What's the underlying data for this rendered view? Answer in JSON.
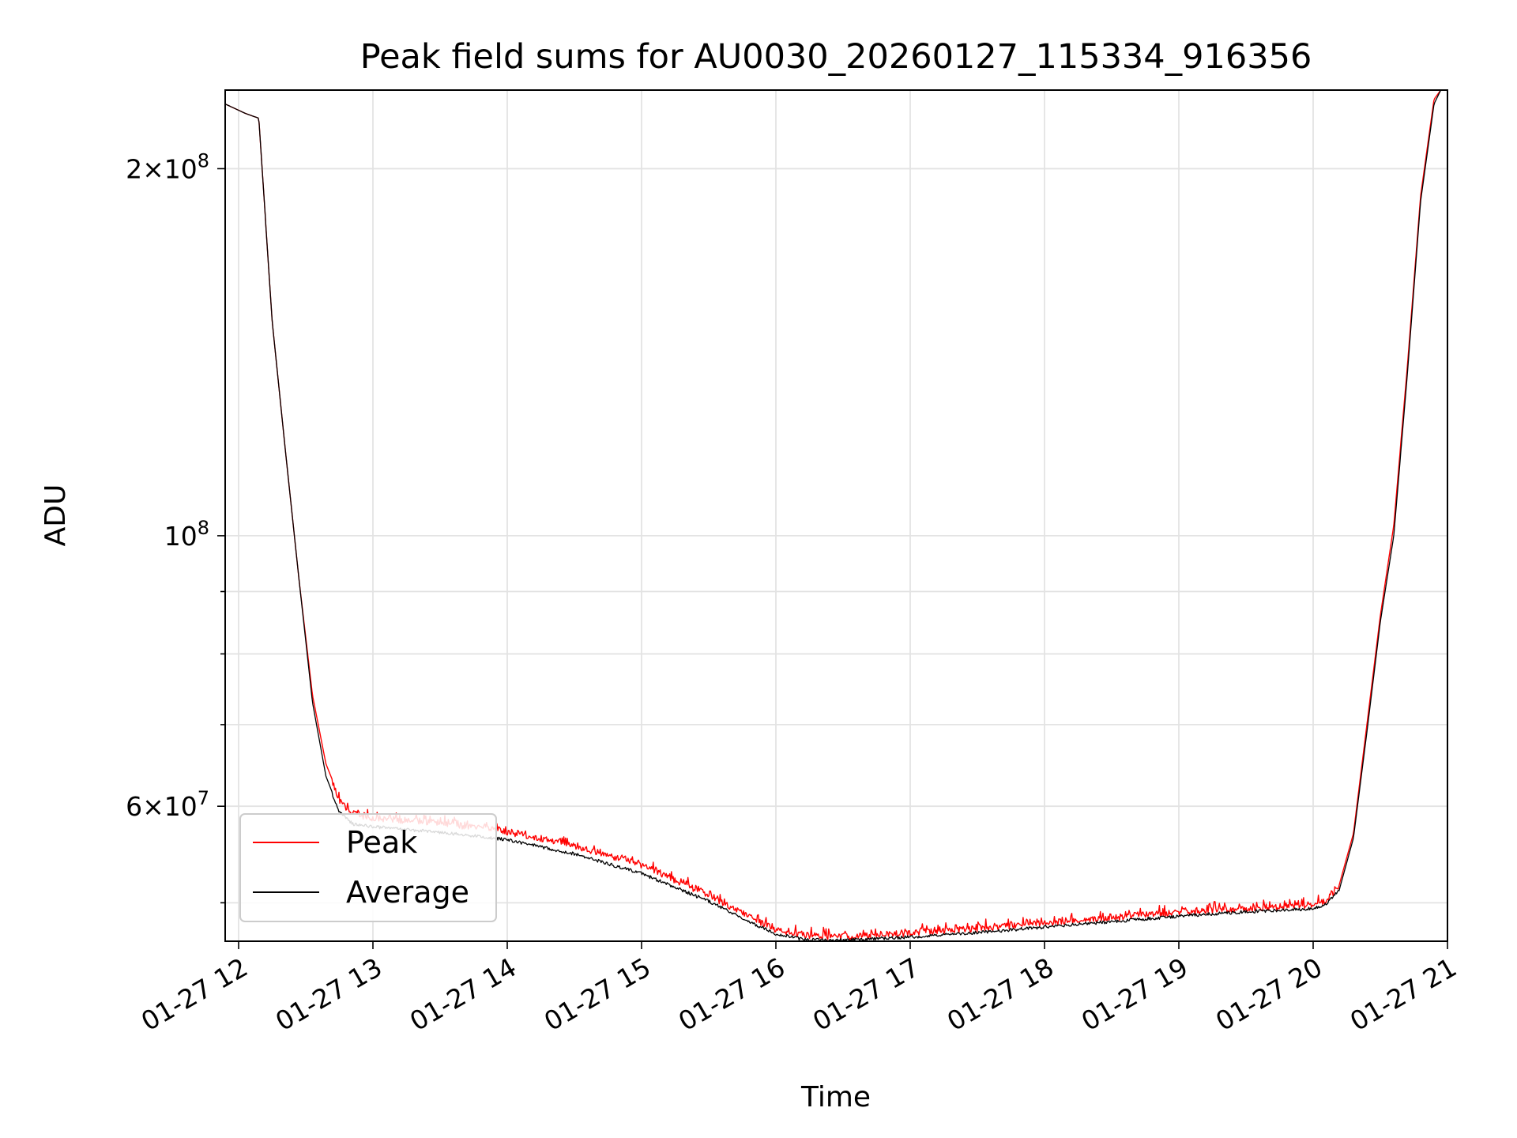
{
  "chart_data": {
    "type": "line",
    "title": "Peak field sums for AU0030_20260127_115334_916356",
    "xlabel": "Time",
    "ylabel": "ADU",
    "yscale": "log",
    "xlim": [
      11.9,
      21.0
    ],
    "ylim": [
      46500000,
      232000000
    ],
    "grid": true,
    "legend_location": "lower-left",
    "x_ticks": [
      {
        "value": 12,
        "label": "01-27 12"
      },
      {
        "value": 13,
        "label": "01-27 13"
      },
      {
        "value": 14,
        "label": "01-27 14"
      },
      {
        "value": 15,
        "label": "01-27 15"
      },
      {
        "value": 16,
        "label": "01-27 16"
      },
      {
        "value": 17,
        "label": "01-27 17"
      },
      {
        "value": 18,
        "label": "01-27 18"
      },
      {
        "value": 19,
        "label": "01-27 19"
      },
      {
        "value": 20,
        "label": "01-27 20"
      },
      {
        "value": 21,
        "label": "01-27 21"
      }
    ],
    "y_ticks": [
      {
        "value": 200000000,
        "mantissa": "2",
        "exponent": "8"
      },
      {
        "value": 100000000,
        "mantissa": "",
        "exponent": "8"
      },
      {
        "value": 60000000,
        "mantissa": "6",
        "exponent": "7"
      }
    ],
    "y_minor_ticks": [
      50000000,
      70000000,
      80000000,
      90000000
    ],
    "series": [
      {
        "name": "Peak",
        "color": "#ff0000",
        "x": [
          11.9,
          12.05,
          12.15,
          12.25,
          12.35,
          12.45,
          12.55,
          12.65,
          12.75,
          12.85,
          13.0,
          13.5,
          14.0,
          14.5,
          15.0,
          15.5,
          15.8,
          16.0,
          16.2,
          16.4,
          16.6,
          16.8,
          17.0,
          17.5,
          18.0,
          18.5,
          19.0,
          19.5,
          20.0,
          20.1,
          20.2,
          20.3,
          20.4,
          20.5,
          20.6,
          20.7,
          20.8,
          20.9,
          20.95
        ],
        "values": [
          226000000,
          222000000,
          220000000,
          150000000,
          117000000,
          92000000,
          74000000,
          65000000,
          61000000,
          59500000,
          59000000,
          58500000,
          57500000,
          56000000,
          54000000,
          51000000,
          49000000,
          47800000,
          47300000,
          47200000,
          47200000,
          47300000,
          47500000,
          47900000,
          48400000,
          48900000,
          49400000,
          49800000,
          50000000,
          50500000,
          52000000,
          57000000,
          70000000,
          86000000,
          102000000,
          137000000,
          190000000,
          228000000,
          232000000
        ]
      },
      {
        "name": "Average",
        "color": "#000000",
        "x": [
          11.9,
          12.05,
          12.15,
          12.25,
          12.35,
          12.45,
          12.55,
          12.65,
          12.75,
          12.85,
          13.0,
          13.5,
          14.0,
          14.5,
          15.0,
          15.5,
          15.8,
          16.0,
          16.2,
          16.4,
          16.6,
          16.8,
          17.0,
          17.5,
          18.0,
          18.5,
          19.0,
          19.5,
          20.0,
          20.1,
          20.2,
          20.3,
          20.4,
          20.5,
          20.6,
          20.7,
          20.8,
          20.9,
          20.95
        ],
        "values": [
          226000000,
          222000000,
          220000000,
          150000000,
          117000000,
          92000000,
          73000000,
          63500000,
          59500000,
          58200000,
          57900000,
          57300000,
          56500000,
          55000000,
          53000000,
          50300000,
          48400000,
          47300000,
          46800000,
          46700000,
          46800000,
          46900000,
          47000000,
          47400000,
          47900000,
          48400000,
          48900000,
          49300000,
          49600000,
          50000000,
          51500000,
          56500000,
          69000000,
          85000000,
          100000000,
          135000000,
          188000000,
          226000000,
          232000000
        ]
      }
    ],
    "legend": [
      {
        "label": "Peak",
        "color": "#ff0000"
      },
      {
        "label": "Average",
        "color": "#000000"
      }
    ]
  }
}
